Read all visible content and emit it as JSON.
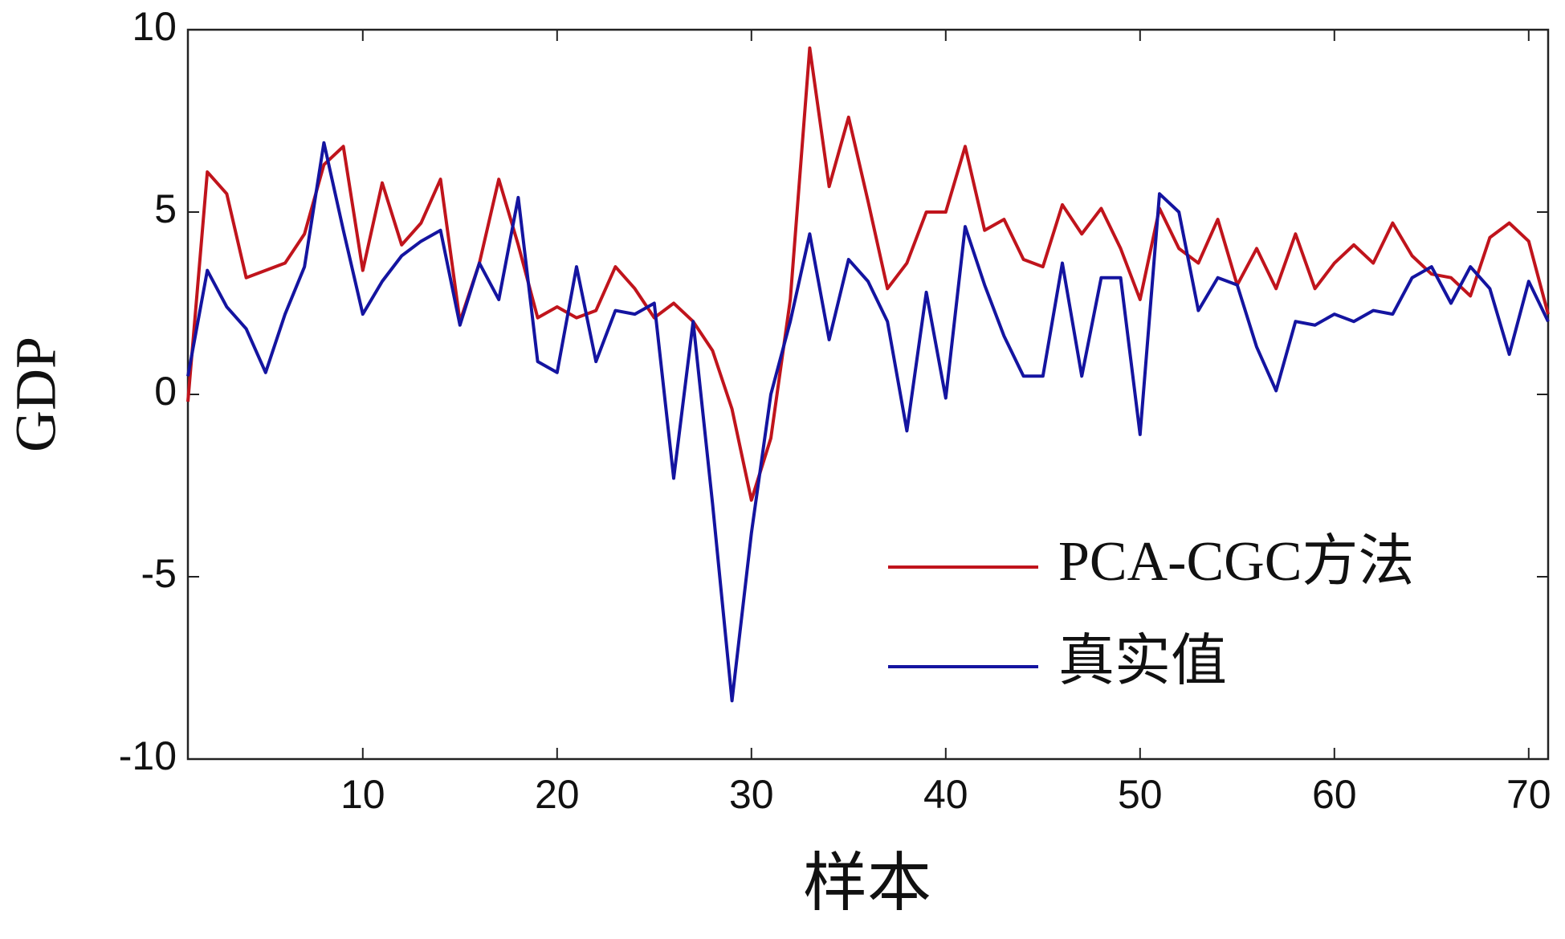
{
  "chart_data": {
    "type": "line",
    "xlabel": "样本",
    "ylabel": "GDP",
    "x": [
      1,
      2,
      3,
      4,
      5,
      6,
      7,
      8,
      9,
      10,
      11,
      12,
      13,
      14,
      15,
      16,
      17,
      18,
      19,
      20,
      21,
      22,
      23,
      24,
      25,
      26,
      27,
      28,
      29,
      30,
      31,
      32,
      33,
      34,
      35,
      36,
      37,
      38,
      39,
      40,
      41,
      42,
      43,
      44,
      45,
      46,
      47,
      48,
      49,
      50,
      51,
      52,
      53,
      54,
      55,
      56,
      57,
      58,
      59,
      60,
      61,
      62,
      63,
      64,
      65,
      66,
      67,
      68,
      69,
      70,
      71
    ],
    "series": [
      {
        "name": "PCA-CGC方法",
        "color": "#c0141c",
        "values": [
          -0.2,
          6.1,
          5.5,
          3.2,
          3.4,
          3.6,
          4.4,
          6.3,
          6.8,
          3.4,
          5.8,
          4.1,
          4.7,
          5.9,
          2.0,
          3.6,
          5.9,
          4.1,
          2.1,
          2.4,
          2.1,
          2.3,
          3.5,
          2.9,
          2.1,
          2.5,
          2.0,
          1.2,
          -0.4,
          -2.9,
          -1.2,
          2.6,
          9.5,
          5.7,
          7.6,
          5.3,
          2.9,
          3.6,
          5.0,
          5.0,
          6.8,
          4.5,
          4.8,
          3.7,
          3.5,
          5.2,
          4.4,
          5.1,
          4.0,
          2.6,
          5.1,
          4.0,
          3.6,
          4.8,
          3.0,
          4.0,
          2.9,
          4.4,
          2.9,
          3.6,
          4.1,
          3.6,
          4.7,
          3.8,
          3.3,
          3.2,
          2.7,
          4.3,
          4.7,
          4.2,
          2.2
        ]
      },
      {
        "name": "真实值",
        "color": "#1414a0",
        "values": [
          0.5,
          3.4,
          2.4,
          1.8,
          0.6,
          2.2,
          3.5,
          6.9,
          4.5,
          2.2,
          3.1,
          3.8,
          4.2,
          4.5,
          1.9,
          3.6,
          2.6,
          5.4,
          0.9,
          0.6,
          3.5,
          0.9,
          2.3,
          2.2,
          2.5,
          -2.3,
          2.0,
          -3.0,
          -8.4,
          -3.8,
          0.0,
          2.0,
          4.4,
          1.5,
          3.7,
          3.1,
          2.0,
          -1.0,
          2.8,
          -0.1,
          4.6,
          3.0,
          1.6,
          0.5,
          0.5,
          3.6,
          0.5,
          3.2,
          3.2,
          -1.1,
          5.5,
          5.0,
          2.3,
          3.2,
          3.0,
          1.3,
          0.1,
          2.0,
          1.9,
          2.2,
          2.0,
          2.3,
          2.2,
          3.2,
          3.5,
          2.5,
          3.5,
          2.9,
          1.1,
          3.1,
          2.0
        ]
      }
    ],
    "xlim": [
      1,
      71
    ],
    "xticks": [
      10,
      20,
      30,
      40,
      50,
      60,
      70
    ],
    "ylim": [
      -10,
      10
    ],
    "yticks": [
      -10,
      -5,
      0,
      5,
      10
    ],
    "grid": false,
    "legend": "lower right"
  }
}
